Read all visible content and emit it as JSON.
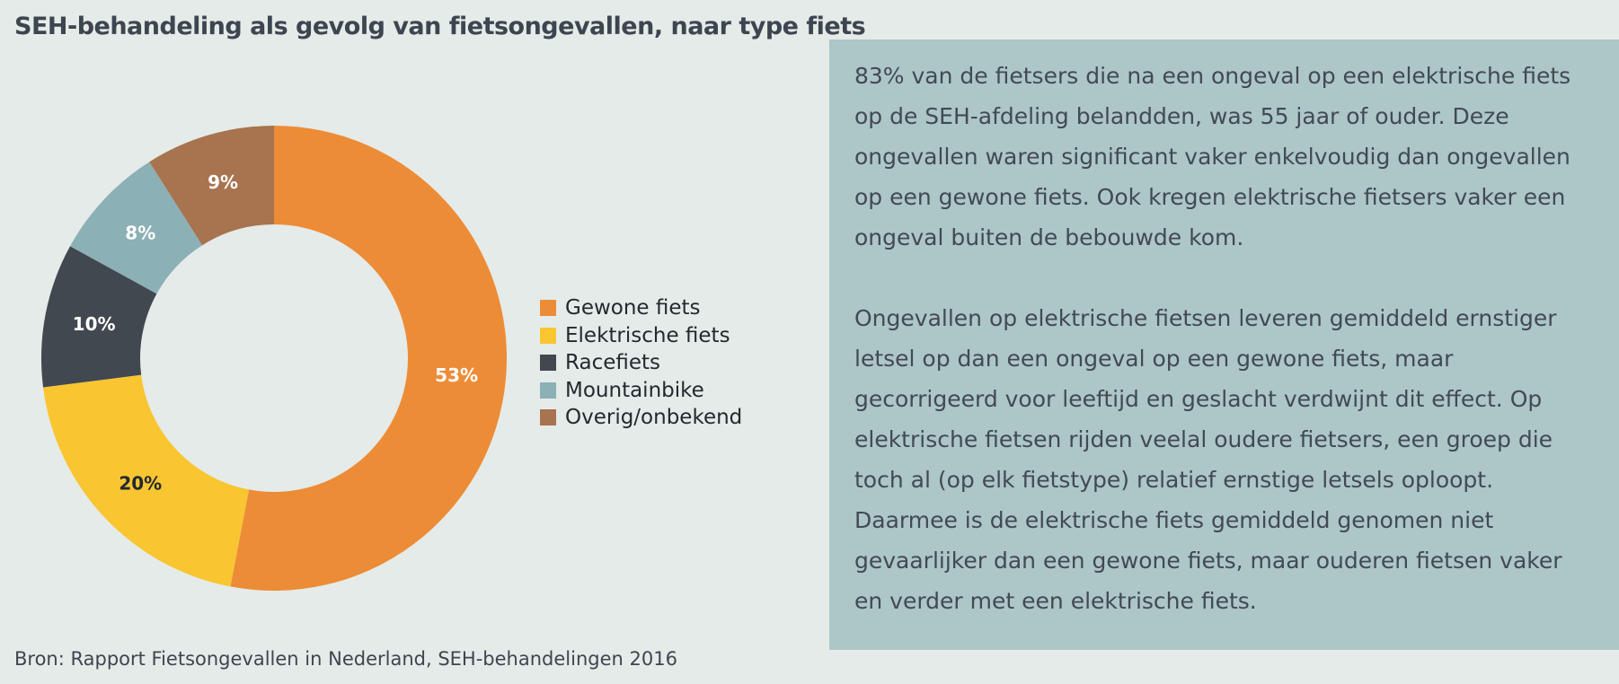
{
  "title": "SEH-behandeling als gevolg van fietsongevallen, naar type fiets",
  "chart_data": {
    "type": "pie",
    "title": "SEH-behandeling als gevolg van fietsongevallen, naar type fiets",
    "variant": "donut",
    "unit": "%",
    "legend_position": "right",
    "categories": [
      "Gewone fiets",
      "Elektrische fiets",
      "Racefiets",
      "Mountainbike",
      "Overig/onbekend"
    ],
    "values": [
      53,
      20,
      10,
      8,
      9
    ],
    "value_labels": [
      "53%",
      "20%",
      "10%",
      "8%",
      "9%"
    ],
    "colors": [
      "#ed8c37",
      "#f9c531",
      "#414850",
      "#8bb0b6",
      "#a8734f"
    ],
    "label_colors": [
      "#ffffff",
      "#222a30",
      "#ffffff",
      "#ffffff",
      "#ffffff"
    ]
  },
  "info": {
    "paragraph1": "83% van de fietsers die na een ongeval op een elektrische fiets op de SEH-afdeling belandden, was 55 jaar of ouder. Deze ongevallen waren significant vaker enkelvoudig dan ongevallen op een gewone fiets. Ook kregen elektrische fietsers vaker een ongeval buiten de bebouwde kom.",
    "paragraph2": "Ongevallen op elektrische fietsen leveren gemiddeld ernstiger letsel op dan een ongeval op een gewone fiets, maar gecorrigeerd voor leeftijd en geslacht verdwijnt dit effect. Op elektrische fietsen rijden veelal oudere fietsers, een groep die toch al (op elk fietstype) relatief ernstige letsels oploopt. Daarmee is de elektrische fiets gemiddeld genomen niet gevaarlijker dan een gewone fiets, maar ouderen fietsen vaker en verder met een elektrische fiets."
  },
  "source": "Bron: Rapport Fietsongevallen in Nederland, SEH-behandelingen 2016"
}
